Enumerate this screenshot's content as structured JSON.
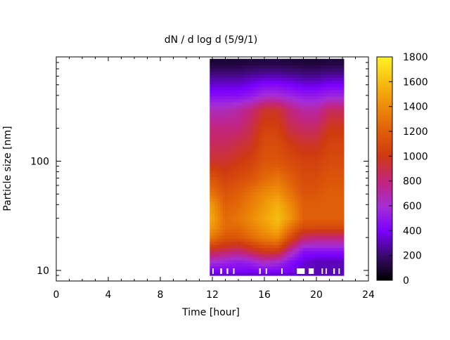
{
  "chart_data": {
    "type": "heatmap",
    "title": "dN / d log d (5/9/1)",
    "xlabel": "Time [hour]",
    "ylabel": "Particle size [nm]",
    "xlim": [
      0,
      24
    ],
    "x_ticks": [
      "0",
      "4",
      "8",
      "12",
      "16",
      "20",
      "24"
    ],
    "ylim_nm": [
      8,
      900
    ],
    "y_scale": "log",
    "y_ticks": [
      "10",
      "100"
    ],
    "colorbar": {
      "range": [
        0,
        1800
      ],
      "ticks": [
        "0",
        "200",
        "400",
        "600",
        "800",
        "1000",
        "1200",
        "1400",
        "1600",
        "1800"
      ],
      "palette": "black-purple-red-orange-yellow"
    },
    "data_time_range_hour": [
      11.8,
      22.1
    ],
    "size_bins_nm": [
      9,
      10,
      12,
      15,
      20,
      25,
      30,
      40,
      50,
      70,
      100,
      150,
      200,
      300,
      400,
      600,
      800
    ],
    "times_hour": [
      12,
      13,
      14,
      15,
      16,
      17,
      18,
      19,
      20,
      21,
      22
    ],
    "values": [
      [
        300,
        300,
        300,
        300,
        300,
        300,
        300,
        300,
        300,
        300,
        300
      ],
      [
        400,
        420,
        420,
        400,
        430,
        420,
        400,
        300,
        300,
        300,
        300
      ],
      [
        600,
        550,
        500,
        550,
        650,
        600,
        450,
        350,
        300,
        300,
        300
      ],
      [
        900,
        850,
        800,
        900,
        1000,
        1000,
        700,
        450,
        450,
        450,
        450
      ],
      [
        1300,
        1150,
        1150,
        1250,
        1350,
        1400,
        1100,
        850,
        800,
        800,
        800
      ],
      [
        1450,
        1250,
        1250,
        1350,
        1450,
        1550,
        1300,
        1100,
        1100,
        1100,
        1100
      ],
      [
        1500,
        1250,
        1300,
        1400,
        1500,
        1600,
        1450,
        1200,
        1200,
        1200,
        1200
      ],
      [
        1450,
        1200,
        1250,
        1350,
        1450,
        1550,
        1400,
        1200,
        1200,
        1200,
        1200
      ],
      [
        1300,
        1150,
        1200,
        1300,
        1400,
        1450,
        1300,
        1150,
        1150,
        1200,
        1200
      ],
      [
        1150,
        1050,
        1100,
        1150,
        1250,
        1300,
        1200,
        1100,
        1100,
        1150,
        1150
      ],
      [
        950,
        950,
        1000,
        1050,
        1150,
        1150,
        1100,
        1050,
        1050,
        1100,
        1100
      ],
      [
        850,
        850,
        900,
        950,
        1100,
        1100,
        1000,
        950,
        950,
        1050,
        1050
      ],
      [
        800,
        800,
        800,
        900,
        1050,
        1050,
        900,
        850,
        850,
        1000,
        1000
      ],
      [
        650,
        650,
        700,
        800,
        950,
        950,
        800,
        700,
        700,
        850,
        850
      ],
      [
        450,
        450,
        450,
        500,
        600,
        600,
        550,
        500,
        500,
        550,
        550
      ],
      [
        250,
        250,
        250,
        280,
        300,
        300,
        280,
        250,
        250,
        280,
        280
      ],
      [
        100,
        100,
        100,
        110,
        120,
        120,
        110,
        100,
        100,
        110,
        110
      ]
    ]
  }
}
